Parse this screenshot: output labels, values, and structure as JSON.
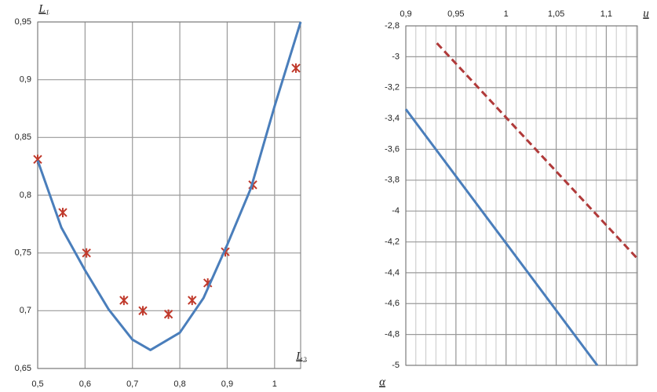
{
  "chart_data": [
    {
      "type": "line",
      "xlabel": "L₂",
      "ylabel": "L₁",
      "xlim": [
        0.5,
        1.055
      ],
      "ylim": [
        0.65,
        0.95
      ],
      "xticks": [
        {
          "value": 0.5,
          "label": "0,5"
        },
        {
          "value": 0.6,
          "label": "0,6"
        },
        {
          "value": 0.7,
          "label": "0,7"
        },
        {
          "value": 0.8,
          "label": "0,8"
        },
        {
          "value": 0.9,
          "label": "0,9"
        },
        {
          "value": 1,
          "label": "1"
        }
      ],
      "yticks": [
        {
          "value": 0.65,
          "label": "0,65"
        },
        {
          "value": 0.7,
          "label": "0,7"
        },
        {
          "value": 0.75,
          "label": "0,75"
        },
        {
          "value": 0.8,
          "label": "0,8"
        },
        {
          "value": 0.85,
          "label": "0,85"
        },
        {
          "value": 0.9,
          "label": "0,9"
        },
        {
          "value": 0.95,
          "label": "0,95"
        }
      ],
      "grid": true,
      "xaxis_position": "bottom",
      "series": [
        {
          "type": "scatter",
          "marker": "asterisk",
          "color": "#c0392b",
          "x": [
            0.5,
            0.553,
            0.603,
            0.682,
            0.722,
            0.776,
            0.826,
            0.859,
            0.896,
            0.954,
            1.045
          ],
          "values": [
            0.831,
            0.785,
            0.75,
            0.709,
            0.7,
            0.697,
            0.709,
            0.724,
            0.751,
            0.809,
            0.91
          ]
        },
        {
          "type": "line",
          "color": "#4a7ebb",
          "dash": false,
          "x": [
            0.5,
            0.55,
            0.6,
            0.65,
            0.7,
            0.738,
            0.8,
            0.85,
            0.9,
            0.95,
            1.0,
            1.055
          ],
          "values": [
            0.83,
            0.772,
            0.735,
            0.701,
            0.675,
            0.666,
            0.681,
            0.711,
            0.757,
            0.806,
            0.877,
            0.95
          ]
        }
      ]
    },
    {
      "type": "line",
      "xlabel": "u",
      "ylabel": "α",
      "xlim": [
        0.9,
        1.131
      ],
      "ylim": [
        -5,
        -2.8
      ],
      "xticks": [
        {
          "value": 0.9,
          "label": "0,9"
        },
        {
          "value": 0.95,
          "label": "0,95"
        },
        {
          "value": 1,
          "label": "1"
        },
        {
          "value": 1.05,
          "label": "1,05"
        },
        {
          "value": 1.1,
          "label": "1,1"
        }
      ],
      "yticks": [
        {
          "value": -2.8,
          "label": "-2,8"
        },
        {
          "value": -3,
          "label": "-3"
        },
        {
          "value": -3.2,
          "label": "-3,2"
        },
        {
          "value": -3.4,
          "label": "-3,4"
        },
        {
          "value": -3.6,
          "label": "-3,6"
        },
        {
          "value": -3.8,
          "label": "-3,8"
        },
        {
          "value": -4,
          "label": "-4"
        },
        {
          "value": -4.2,
          "label": "-4,2"
        },
        {
          "value": -4.4,
          "label": "-4,4"
        },
        {
          "value": -4.6,
          "label": "-4,6"
        },
        {
          "value": -4.8,
          "label": "-4,8"
        },
        {
          "value": -5,
          "label": "-5"
        }
      ],
      "grid": true,
      "xminor": 0.01,
      "xaxis_position": "top",
      "series": [
        {
          "type": "line",
          "color": "#4a7ebb",
          "dash": false,
          "x": [
            0.9,
            0.993,
            1.091
          ],
          "values": [
            -3.34,
            -4.148,
            -5
          ]
        },
        {
          "type": "line",
          "color": "#b03a3a",
          "dash": true,
          "x": [
            0.931,
            1.131
          ],
          "values": [
            -2.912,
            -4.308
          ]
        }
      ]
    }
  ]
}
